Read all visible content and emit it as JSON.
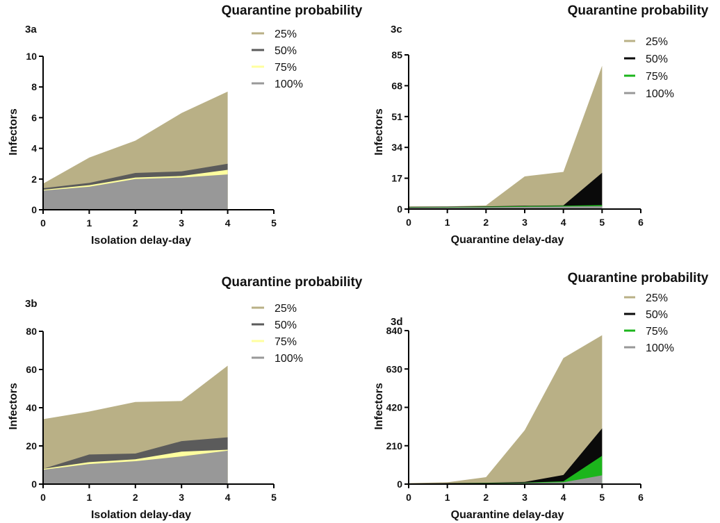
{
  "chart_data": [
    {
      "id": "3a",
      "type": "area",
      "panel_label": "3a",
      "legend_title": "Quarantine probability",
      "xlabel": "Isolation delay-day",
      "ylabel": "Infectors",
      "x": [
        0,
        1,
        2,
        3,
        4
      ],
      "xlim": [
        0,
        5
      ],
      "ylim": [
        0,
        10
      ],
      "xticks": [
        "0",
        "1",
        "2",
        "3",
        "4",
        "5"
      ],
      "yticks": [
        "0",
        "2",
        "4",
        "6",
        "8",
        "10"
      ],
      "series": [
        {
          "name": "25%",
          "values": [
            1.7,
            3.4,
            4.5,
            6.3,
            7.7
          ],
          "color": "#b9b086"
        },
        {
          "name": "50%",
          "values": [
            1.4,
            1.75,
            2.4,
            2.5,
            3.0
          ],
          "color": "#5b5b5b"
        },
        {
          "name": "75%",
          "values": [
            1.3,
            1.6,
            2.1,
            2.2,
            2.6
          ],
          "color": "#ffff9f"
        },
        {
          "name": "100%",
          "values": [
            1.25,
            1.5,
            2.0,
            2.1,
            2.3
          ],
          "color": "#989898"
        }
      ]
    },
    {
      "id": "3b",
      "type": "area",
      "panel_label": "3b",
      "legend_title": "Quarantine probability",
      "xlabel": "Isolation delay-day",
      "ylabel": "Infectors",
      "x": [
        0,
        1,
        2,
        3,
        4
      ],
      "xlim": [
        0,
        5
      ],
      "ylim": [
        0,
        80
      ],
      "xticks": [
        "0",
        "1",
        "2",
        "3",
        "4",
        "5"
      ],
      "yticks": [
        "0",
        "20",
        "40",
        "60",
        "80"
      ],
      "series": [
        {
          "name": "25%",
          "values": [
            34,
            38,
            43,
            43.5,
            62
          ],
          "color": "#b9b086"
        },
        {
          "name": "50%",
          "values": [
            8,
            15.5,
            16,
            22.5,
            24.5
          ],
          "color": "#5b5b5b"
        },
        {
          "name": "75%",
          "values": [
            8,
            11.5,
            13,
            17,
            18
          ],
          "color": "#ffff9f"
        },
        {
          "name": "100%",
          "values": [
            7.5,
            10.5,
            12,
            14.5,
            17.5
          ],
          "color": "#989898"
        }
      ]
    },
    {
      "id": "3c",
      "type": "area",
      "panel_label": "3c",
      "legend_title": "Quarantine probability",
      "xlabel": "Quarantine delay-day",
      "ylabel": "Infectors",
      "x": [
        0,
        1,
        2,
        3,
        4,
        5
      ],
      "xlim": [
        0,
        6
      ],
      "ylim": [
        0,
        85
      ],
      "xticks": [
        "0",
        "1",
        "2",
        "3",
        "4",
        "5",
        "6"
      ],
      "yticks": [
        "0",
        "17",
        "34",
        "51",
        "68",
        "85"
      ],
      "series": [
        {
          "name": "25%",
          "values": [
            1.5,
            1.5,
            2,
            18,
            20.5,
            79
          ],
          "color": "#b9b086"
        },
        {
          "name": "50%",
          "values": [
            1.2,
            1.3,
            1.5,
            1.8,
            2,
            20
          ],
          "color": "#0a0a0a"
        },
        {
          "name": "75%",
          "values": [
            1.0,
            1.1,
            1.3,
            1.6,
            1.8,
            2.2
          ],
          "color": "#1cb51c"
        },
        {
          "name": "100%",
          "values": [
            0.8,
            0.9,
            1.0,
            1.2,
            1.4,
            1.6
          ],
          "color": "#989898"
        }
      ]
    },
    {
      "id": "3d",
      "type": "area",
      "panel_label": "3d",
      "legend_title": "Quarantine probability",
      "xlabel": "Quarantine delay-day",
      "ylabel": "Infectors",
      "x": [
        0,
        1,
        2,
        3,
        4,
        5
      ],
      "xlim": [
        0,
        6
      ],
      "ylim": [
        0,
        840
      ],
      "xticks": [
        "0",
        "1",
        "2",
        "3",
        "4",
        "5",
        "6"
      ],
      "yticks": [
        "0",
        "210",
        "420",
        "630",
        "840"
      ],
      "series": [
        {
          "name": "25%",
          "values": [
            5,
            10,
            38,
            295,
            690,
            815
          ],
          "color": "#b9b086"
        },
        {
          "name": "50%",
          "values": [
            4,
            5,
            7,
            12,
            50,
            305
          ],
          "color": "#0a0a0a"
        },
        {
          "name": "75%",
          "values": [
            3,
            4,
            5,
            8,
            15,
            155
          ],
          "color": "#1cb51c"
        },
        {
          "name": "100%",
          "values": [
            2,
            3,
            4,
            6,
            10,
            48
          ],
          "color": "#989898"
        }
      ]
    }
  ]
}
